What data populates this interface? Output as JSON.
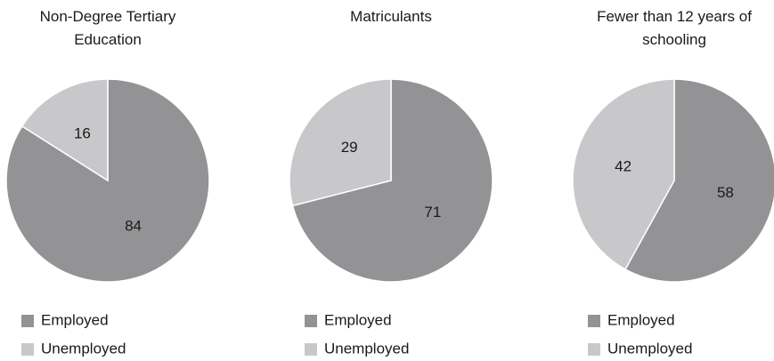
{
  "chart_data": [
    {
      "type": "pie",
      "title": "Non-Degree Tertiary Education",
      "categories": [
        "Employed",
        "Unemployed"
      ],
      "values": [
        84,
        16
      ],
      "colors": [
        "#939395",
        "#c8c8ca"
      ]
    },
    {
      "type": "pie",
      "title": "Matriculants",
      "categories": [
        "Employed",
        "Unemployed"
      ],
      "values": [
        71,
        29
      ],
      "colors": [
        "#939395",
        "#c8c8ca"
      ]
    },
    {
      "type": "pie",
      "title": "Fewer than 12 years of schooling",
      "categories": [
        "Employed",
        "Unemployed"
      ],
      "values": [
        58,
        42
      ],
      "colors": [
        "#939395",
        "#c8c8ca"
      ]
    }
  ]
}
